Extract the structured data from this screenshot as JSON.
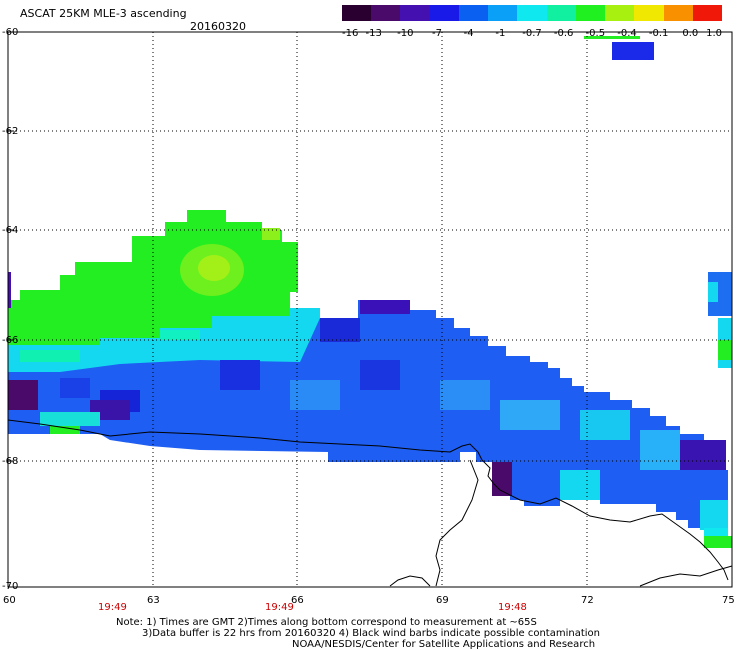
{
  "title": "ASCAT 25KM MLE-3 ascending",
  "date": "20160320",
  "colorbar": {
    "ticks": [
      "-16",
      "-13",
      "-10",
      "-7",
      "-4",
      "-1",
      "-0.7",
      "-0.6",
      "-0.5",
      "-0.4",
      "-0.1",
      "0.0",
      "1.0"
    ],
    "colors": [
      "#2a0030",
      "#4a0a6a",
      "#4410b0",
      "#1a1ae8",
      "#0a60f0",
      "#0aa0f8",
      "#10e8f0",
      "#10f0a0",
      "#20f020",
      "#a8f010",
      "#f0e800",
      "#f89000",
      "#f01808"
    ]
  },
  "axes": {
    "lat_labels": [
      "-60",
      "-62",
      "-64",
      "-66",
      "-68",
      "-70"
    ],
    "lon_labels": [
      "60",
      "63",
      "66",
      "69",
      "72",
      "75"
    ]
  },
  "times": [
    "19:49",
    "19:49",
    "19:48"
  ],
  "notes": [
    "Note: 1) Times are GMT 2)Times along bottom correspond to measurement at ~65S",
    "3)Data buffer is 22 hrs from 20160320 4) Black wind barbs indicate possible contamination",
    "NOAA/NESDIS/Center for Satellite Applications and Research"
  ]
}
